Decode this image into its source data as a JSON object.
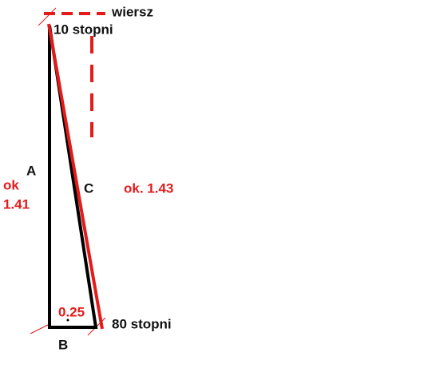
{
  "labels": {
    "top_right": "wiersz",
    "top_angle": "10 stopni",
    "side_a": "A",
    "side_a_measure": [
      "ok",
      "1.41"
    ],
    "side_c": "C",
    "side_c_measure": "ok. 1.43",
    "side_b_measure": "0.25",
    "bottom_angle": "80 stopni",
    "side_b": "B"
  }
}
